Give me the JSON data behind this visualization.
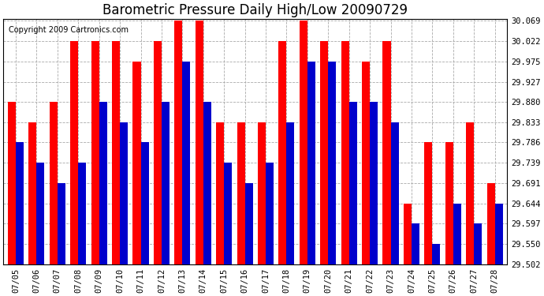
{
  "title": "Barometric Pressure Daily High/Low 20090729",
  "copyright": "Copyright 2009 Cartronics.com",
  "dates": [
    "07/05",
    "07/06",
    "07/07",
    "07/08",
    "07/09",
    "07/10",
    "07/11",
    "07/12",
    "07/13",
    "07/14",
    "07/15",
    "07/16",
    "07/17",
    "07/18",
    "07/19",
    "07/20",
    "07/21",
    "07/22",
    "07/23",
    "07/24",
    "07/25",
    "07/26",
    "07/27",
    "07/28"
  ],
  "highs": [
    29.88,
    29.833,
    29.88,
    30.022,
    30.022,
    30.022,
    29.975,
    30.022,
    30.069,
    30.069,
    29.833,
    29.833,
    29.833,
    30.022,
    30.069,
    30.022,
    30.022,
    29.975,
    30.022,
    29.644,
    29.786,
    29.786,
    29.833,
    29.691
  ],
  "lows": [
    29.786,
    29.739,
    29.691,
    29.739,
    29.88,
    29.833,
    29.786,
    29.88,
    29.975,
    29.88,
    29.739,
    29.691,
    29.739,
    29.833,
    29.975,
    29.975,
    29.88,
    29.88,
    29.833,
    29.597,
    29.55,
    29.644,
    29.597,
    29.644
  ],
  "yticks": [
    29.502,
    29.55,
    29.597,
    29.644,
    29.691,
    29.739,
    29.786,
    29.833,
    29.88,
    29.927,
    29.975,
    30.022,
    30.069
  ],
  "ymin": 29.502,
  "ymax": 30.069,
  "bar_width": 0.38,
  "high_color": "#FF0000",
  "low_color": "#0000CC",
  "bg_color": "#FFFFFF",
  "plot_bg_color": "#FFFFFF",
  "grid_color": "#AAAAAA",
  "title_fontsize": 12,
  "tick_fontsize": 7.5,
  "copyright_fontsize": 7
}
